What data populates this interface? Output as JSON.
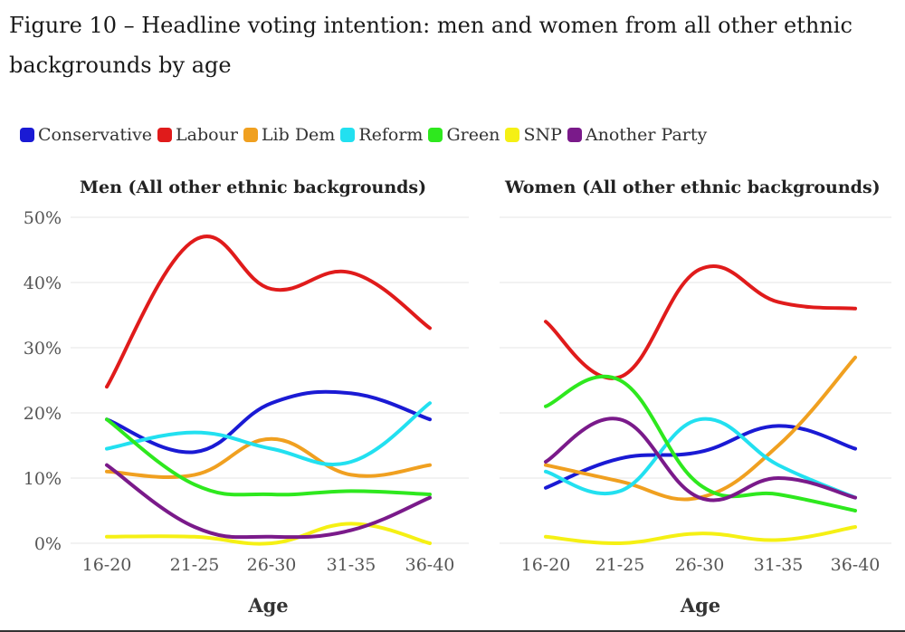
{
  "title": "Figure 10 – Headline voting intention: men and women from all other ethnic backgrounds by age",
  "legend": [
    {
      "label": "Conservative",
      "color": "#1a1ad4"
    },
    {
      "label": "Labour",
      "color": "#e01b1b"
    },
    {
      "label": "Lib Dem",
      "color": "#f0a020"
    },
    {
      "label": "Reform",
      "color": "#22e0f0"
    },
    {
      "label": "Green",
      "color": "#2ee81e"
    },
    {
      "label": "SNP",
      "color": "#f5f014"
    },
    {
      "label": "Another Party",
      "color": "#7a1a8a"
    }
  ],
  "chart_data": [
    {
      "type": "line",
      "title": "Men (All other ethnic backgrounds)",
      "xlabel": "Age",
      "ylabel": "",
      "x": [
        "16-20",
        "21-25",
        "26-30",
        "31-35",
        "36-40"
      ],
      "yticks": [
        "0%",
        "10%",
        "20%",
        "30%",
        "40%",
        "50%"
      ],
      "ylim": [
        0,
        50
      ],
      "grid": true,
      "series": [
        {
          "name": "Conservative",
          "color": "#1a1ad4",
          "values": [
            19,
            14,
            21.5,
            23,
            19
          ]
        },
        {
          "name": "Labour",
          "color": "#e01b1b",
          "values": [
            24,
            46.5,
            39,
            41.5,
            33
          ]
        },
        {
          "name": "Lib Dem",
          "color": "#f0a020",
          "values": [
            11,
            10.5,
            16,
            10.5,
            12
          ]
        },
        {
          "name": "Reform",
          "color": "#22e0f0",
          "values": [
            14.5,
            17,
            14.5,
            12.5,
            21.5
          ]
        },
        {
          "name": "Green",
          "color": "#2ee81e",
          "values": [
            19,
            9,
            7.5,
            8,
            7.5
          ]
        },
        {
          "name": "SNP",
          "color": "#f5f014",
          "values": [
            1,
            1,
            0,
            3,
            0
          ]
        },
        {
          "name": "Another Party",
          "color": "#7a1a8a",
          "values": [
            12,
            2.5,
            1,
            2,
            7
          ]
        }
      ]
    },
    {
      "type": "line",
      "title": "Women (All other ethnic backgrounds)",
      "xlabel": "Age",
      "ylabel": "",
      "x": [
        "16-20",
        "21-25",
        "26-30",
        "31-35",
        "36-40"
      ],
      "ylim": [
        0,
        50
      ],
      "grid": true,
      "series": [
        {
          "name": "Conservative",
          "color": "#1a1ad4",
          "values": [
            8.5,
            13,
            14,
            18,
            14.5
          ]
        },
        {
          "name": "Labour",
          "color": "#e01b1b",
          "values": [
            34,
            25.5,
            42,
            37,
            36
          ]
        },
        {
          "name": "Lib Dem",
          "color": "#f0a020",
          "values": [
            12,
            9.5,
            7,
            15,
            28.5
          ]
        },
        {
          "name": "Reform",
          "color": "#22e0f0",
          "values": [
            11,
            8,
            19,
            12,
            7
          ]
        },
        {
          "name": "Green",
          "color": "#2ee81e",
          "values": [
            21,
            25,
            9,
            7.5,
            5
          ]
        },
        {
          "name": "SNP",
          "color": "#f5f014",
          "values": [
            1,
            0,
            1.5,
            0.5,
            2.5
          ]
        },
        {
          "name": "Another Party",
          "color": "#7a1a8a",
          "values": [
            12.5,
            19,
            7,
            10,
            7
          ]
        }
      ]
    }
  ]
}
